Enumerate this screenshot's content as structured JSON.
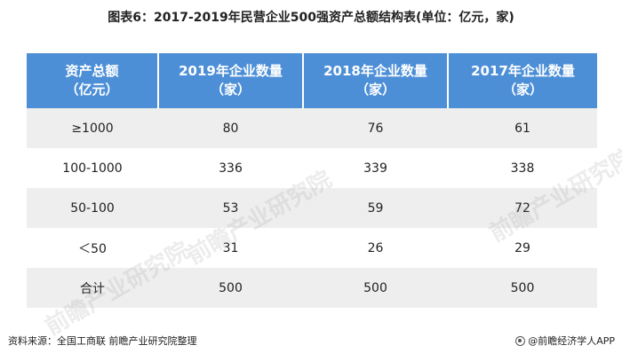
{
  "title": "图表6：2017-2019年民营企业500强资产总额结构表(单位：亿元，家)",
  "table": {
    "headers": [
      [
        "资产总额",
        "（亿元）"
      ],
      [
        "2019年企业数量",
        "（家）"
      ],
      [
        "2018年企业数量",
        "（家）"
      ],
      [
        "2017年企业数量",
        "（家）"
      ]
    ],
    "rows": [
      [
        "≥1000",
        "80",
        "76",
        "61"
      ],
      [
        "100-1000",
        "336",
        "339",
        "338"
      ],
      [
        "50-100",
        "53",
        "59",
        "72"
      ],
      [
        "＜50",
        "31",
        "26",
        "29"
      ],
      [
        "合计",
        "500",
        "500",
        "500"
      ]
    ]
  },
  "footer": {
    "source": "资料来源：全国工商联 前瞻产业研究院整理",
    "brand": "@前瞻经济学人APP"
  },
  "watermark": {
    "text": "前瞻产业研究院"
  }
}
